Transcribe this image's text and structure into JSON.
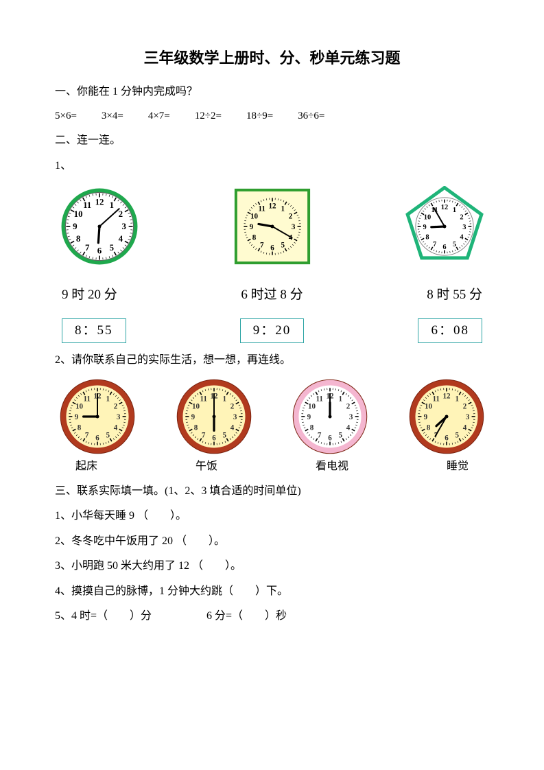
{
  "title": "三年级数学上册时、分、秒单元练习题",
  "s1": {
    "heading": "一、你能在 1 分钟内完成吗？",
    "items": [
      "5×6=",
      "3×4=",
      "4×7=",
      "12÷2=",
      "18÷9=",
      "36÷6="
    ]
  },
  "s2": {
    "heading": "二、连一连。",
    "q1": {
      "num": "1、",
      "clocks": [
        {
          "shape": "circle",
          "border": "#1fa84d",
          "face": "#ffffff",
          "hour": 6,
          "minute": 8
        },
        {
          "shape": "square",
          "border": "#2f9e2f",
          "face": "#fffbd0",
          "hour": 9,
          "minute": 20
        },
        {
          "shape": "pentagon",
          "border": "#1fb479",
          "face": "#ffffff",
          "hour": 8,
          "minute": 55
        }
      ],
      "labels": [
        "9 时 20 分",
        "6 时过 8 分",
        "8 时 55 分"
      ],
      "boxes": [
        "8：55",
        "9：20",
        "6：08"
      ]
    },
    "q2": {
      "num": "2、请你联系自己的实际生活，想一想，再连线。",
      "clocks": [
        {
          "rim": "#b13a1e",
          "face": "#fff4b8",
          "hour": 9,
          "minute": 0
        },
        {
          "rim": "#b13a1e",
          "face": "#fff4b8",
          "hour": 6,
          "minute": 0
        },
        {
          "rim": "#f4b6d0",
          "face": "#ffffff",
          "hour": 12,
          "minute": 0
        },
        {
          "rim": "#b13a1e",
          "face": "#fff4b8",
          "hour": 7,
          "minute": 35
        }
      ],
      "labels": [
        "起床",
        "午饭",
        "看电视",
        "睡觉"
      ]
    }
  },
  "s3": {
    "heading": "三、联系实际填一填。(1、2、3 填合适的时间单位)",
    "lines": [
      "1、小华每天睡 9 （　　）。",
      "2、冬冬吃中午饭用了 20 （　　）。",
      "3、小明跑 50 米大约用了 12 （　　）。",
      "4、摸摸自己的脉博，1 分钟大约跳（　　）下。",
      "5、4 时=（　　）分　　　　　6 分=（　　）秒"
    ]
  },
  "style": {
    "tickColor": "#000000",
    "handColor": "#000000",
    "boxBorder": "#2aa3a3"
  }
}
